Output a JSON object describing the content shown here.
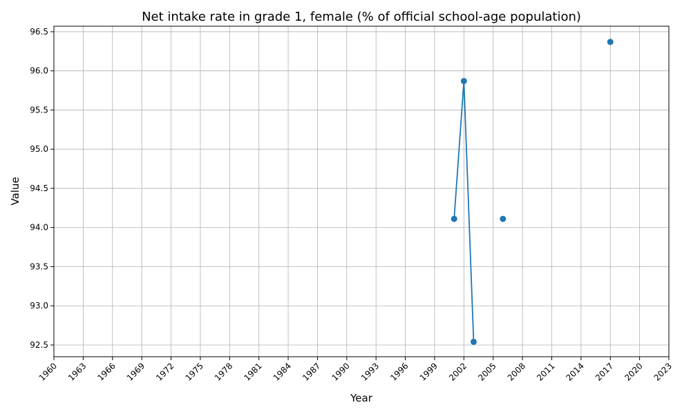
{
  "chart_data": {
    "type": "line",
    "title": "Net intake rate in grade 1, female (% of official school-age population)",
    "xlabel": "Year",
    "ylabel": "Value",
    "xlim": [
      1960,
      2023
    ],
    "ylim": [
      92.35,
      96.57
    ],
    "x_ticks": [
      "1960",
      "1963",
      "1966",
      "1969",
      "1972",
      "1975",
      "1978",
      "1981",
      "1984",
      "1987",
      "1990",
      "1993",
      "1996",
      "1999",
      "2002",
      "2005",
      "2008",
      "2011",
      "2014",
      "2017",
      "2020",
      "2023"
    ],
    "y_ticks": [
      "92.5",
      "93.0",
      "93.5",
      "94.0",
      "94.5",
      "95.0",
      "95.5",
      "96.0",
      "96.5"
    ],
    "grid": true,
    "series": [
      {
        "color": "#1f77b4",
        "marker": "circle",
        "points": [
          {
            "x": 2001,
            "y": 94.11
          },
          {
            "x": 2002,
            "y": 95.87
          },
          {
            "x": 2003,
            "y": 92.54
          },
          {
            "x": 2004,
            "y": null
          },
          {
            "x": 2005,
            "y": null
          },
          {
            "x": 2006,
            "y": 94.11
          },
          {
            "x": 2007,
            "y": null
          },
          {
            "x": 2016,
            "y": null
          },
          {
            "x": 2017,
            "y": 96.37
          },
          {
            "x": 2018,
            "y": null
          }
        ]
      }
    ]
  }
}
